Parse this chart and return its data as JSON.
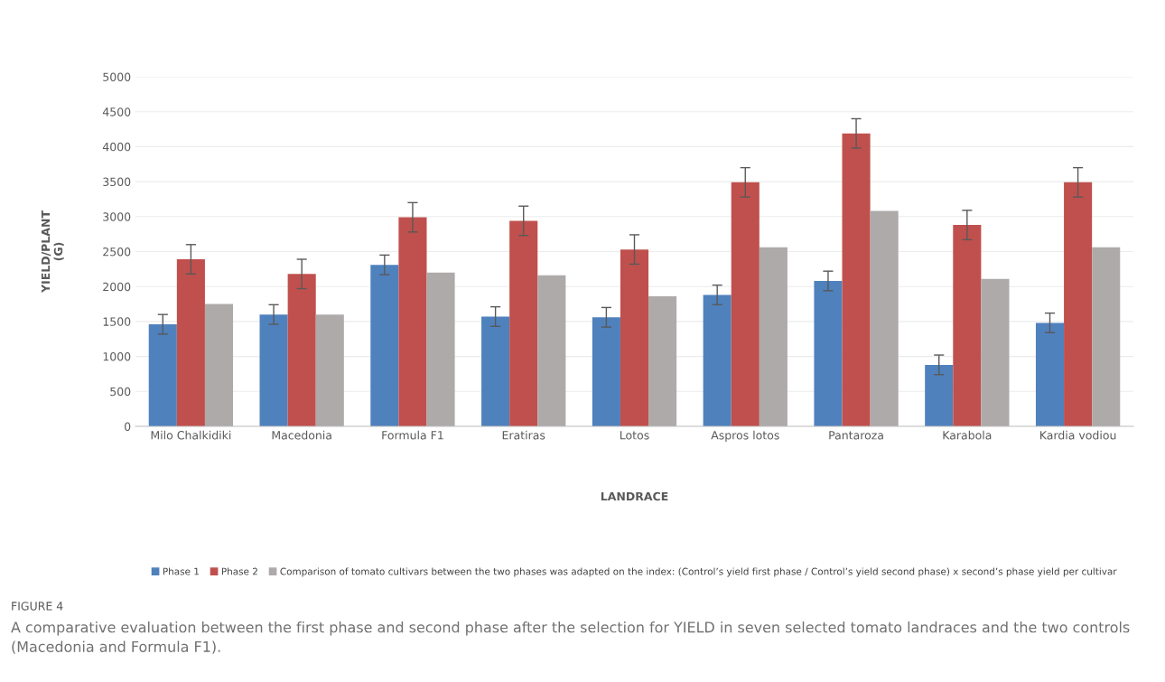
{
  "chart_data": {
    "type": "bar",
    "xlabel": "LANDRACE",
    "ylabel": "YIELD/PLANT\n(G)",
    "categories": [
      "Milo Chalkidiki",
      "Macedonia",
      "Formula F1",
      "Eratiras",
      "Lotos",
      "Aspros lotos",
      "Pantaroza",
      "Karabola",
      "Kardia vodiou"
    ],
    "series": [
      {
        "name": "Phase 1",
        "color": "#4f81bd",
        "values": [
          1460,
          1600,
          2310,
          1570,
          1560,
          1880,
          2080,
          880,
          1480
        ],
        "errors": [
          140,
          140,
          140,
          140,
          140,
          140,
          140,
          140,
          140
        ]
      },
      {
        "name": "Phase 2",
        "color": "#c0504d",
        "values": [
          2390,
          2180,
          2990,
          2940,
          2530,
          3490,
          4190,
          2880,
          3490
        ],
        "errors": [
          210,
          210,
          210,
          210,
          210,
          210,
          210,
          210,
          210
        ]
      },
      {
        "name": "Comparison of tomato cultivars between the two phases was adapted on the index: (Control’s yield first phase / Control’s yield second phase) x second’s phase yield per cultivar",
        "color": "#aeaaaa",
        "values": [
          1750,
          1600,
          2200,
          2160,
          1860,
          2560,
          3080,
          2110,
          2560
        ]
      }
    ],
    "ylim": [
      0,
      5000
    ],
    "yticks": [
      0,
      500,
      1000,
      1500,
      2000,
      2500,
      3000,
      3500,
      4000,
      4500,
      5000
    ],
    "grid": "y",
    "legend": "bottom",
    "annotations": [
      "FIGURE 4",
      "A comparative evaluation between the first phase and second phase after the selection for YIELD in seven selected tomato landraces and the two controls (Macedonia and Formula F1)."
    ]
  }
}
